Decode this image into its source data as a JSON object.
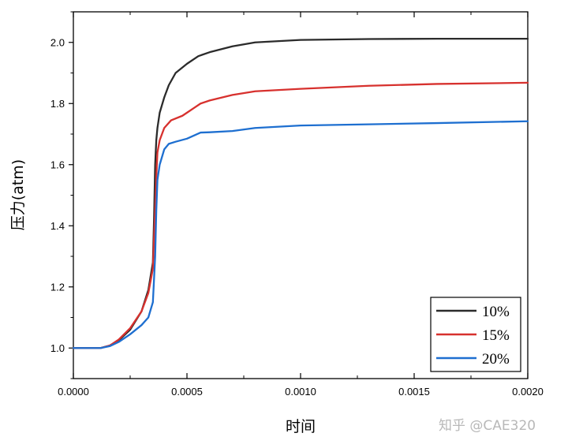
{
  "chart_data": {
    "type": "line",
    "title": "",
    "xlabel": "时间",
    "ylabel": "压力(atm)",
    "xlim": [
      0,
      0.002
    ],
    "ylim": [
      0.9,
      2.1
    ],
    "xticks": [
      0,
      0.0005,
      0.001,
      0.0015,
      0.002
    ],
    "xtick_labels": [
      "0.0000",
      "0.0005",
      "0.0010",
      "0.0015",
      "0.0020"
    ],
    "yticks": [
      1.0,
      1.2,
      1.4,
      1.6,
      1.8,
      2.0
    ],
    "ytick_labels": [
      "1.0",
      "1.2",
      "1.4",
      "1.6",
      "1.8",
      "2.0"
    ],
    "grid": false,
    "legend_position": "bottom-right",
    "series": [
      {
        "name": "10%",
        "color": "#2b2b2b",
        "points": [
          [
            0,
            1.0
          ],
          [
            0.00012,
            1.0
          ],
          [
            0.00016,
            1.008
          ],
          [
            0.0002,
            1.025
          ],
          [
            0.00025,
            1.06
          ],
          [
            0.0003,
            1.12
          ],
          [
            0.00033,
            1.19
          ],
          [
            0.00035,
            1.28
          ],
          [
            0.000355,
            1.42
          ],
          [
            0.00036,
            1.6
          ],
          [
            0.000365,
            1.68
          ],
          [
            0.00037,
            1.72
          ],
          [
            0.00038,
            1.77
          ],
          [
            0.0004,
            1.82
          ],
          [
            0.00042,
            1.86
          ],
          [
            0.00045,
            1.9
          ],
          [
            0.0005,
            1.93
          ],
          [
            0.00055,
            1.955
          ],
          [
            0.0006,
            1.968
          ],
          [
            0.0007,
            1.987
          ],
          [
            0.0008,
            2.0
          ],
          [
            0.001,
            2.008
          ],
          [
            0.0013,
            2.011
          ],
          [
            0.0016,
            2.012
          ],
          [
            0.002,
            2.012
          ]
        ]
      },
      {
        "name": "15%",
        "color": "#d7312e",
        "points": [
          [
            0,
            1.0
          ],
          [
            0.00012,
            1.0
          ],
          [
            0.00016,
            1.008
          ],
          [
            0.0002,
            1.028
          ],
          [
            0.00025,
            1.065
          ],
          [
            0.0003,
            1.12
          ],
          [
            0.00033,
            1.18
          ],
          [
            0.00035,
            1.26
          ],
          [
            0.00036,
            1.45
          ],
          [
            0.000365,
            1.56
          ],
          [
            0.00037,
            1.64
          ],
          [
            0.00038,
            1.68
          ],
          [
            0.0004,
            1.72
          ],
          [
            0.00043,
            1.745
          ],
          [
            0.00048,
            1.76
          ],
          [
            0.0005,
            1.77
          ],
          [
            0.00053,
            1.785
          ],
          [
            0.00056,
            1.8
          ],
          [
            0.0006,
            1.81
          ],
          [
            0.0007,
            1.828
          ],
          [
            0.0008,
            1.84
          ],
          [
            0.001,
            1.848
          ],
          [
            0.0013,
            1.858
          ],
          [
            0.0016,
            1.864
          ],
          [
            0.002,
            1.868
          ]
        ]
      },
      {
        "name": "20%",
        "color": "#1e6fd0",
        "points": [
          [
            0,
            1.0
          ],
          [
            0.00012,
            1.0
          ],
          [
            0.00016,
            1.006
          ],
          [
            0.0002,
            1.02
          ],
          [
            0.00025,
            1.045
          ],
          [
            0.0003,
            1.075
          ],
          [
            0.00033,
            1.1
          ],
          [
            0.00035,
            1.15
          ],
          [
            0.00036,
            1.3
          ],
          [
            0.000365,
            1.45
          ],
          [
            0.00037,
            1.55
          ],
          [
            0.00038,
            1.6
          ],
          [
            0.0004,
            1.65
          ],
          [
            0.00042,
            1.668
          ],
          [
            0.00045,
            1.675
          ],
          [
            0.0005,
            1.685
          ],
          [
            0.00053,
            1.695
          ],
          [
            0.00056,
            1.705
          ],
          [
            0.0006,
            1.706
          ],
          [
            0.0007,
            1.71
          ],
          [
            0.0008,
            1.72
          ],
          [
            0.001,
            1.728
          ],
          [
            0.0013,
            1.732
          ],
          [
            0.0016,
            1.736
          ],
          [
            0.002,
            1.742
          ]
        ]
      }
    ]
  },
  "watermark": "知乎 @CAE320"
}
